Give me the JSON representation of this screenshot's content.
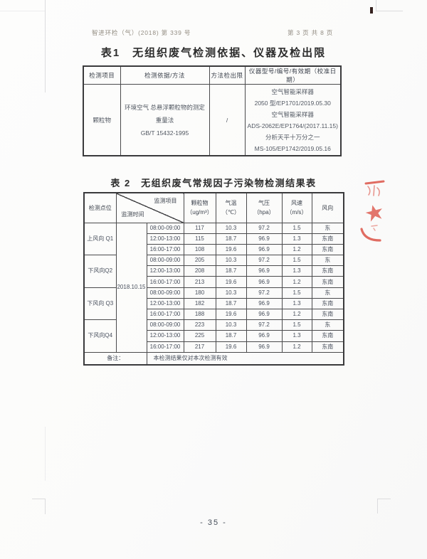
{
  "page": {
    "doc_number": "智进环检（气）(2018) 第 339 号",
    "page_indicator": "第 3 页 共 8 页",
    "footer_page_number": "- 35 -"
  },
  "table1": {
    "title": "表1　无组织废气检测依据、仪器及检出限",
    "headers": [
      "检测项目",
      "检测依据/方法",
      "方法检出限",
      "仪器型号/编号/有效期（校准日期）"
    ],
    "row": {
      "item": "颗粒物",
      "method_lines": [
        "环境空气 总悬浮颗粒物的测定",
        "重量法",
        "GB/T 15432-1995"
      ],
      "detection_limit": "/",
      "instrument_lines": [
        "空气智能采样器",
        "2050 型/EP1701/2019.05.30",
        "空气智能采样器",
        "ADS-2062E/EP1764/(2017.11.15)",
        "分析天平十万分之一",
        "MS-105/EP1742/2019.05.16"
      ]
    }
  },
  "table2": {
    "title": "表 2　无组织废气常规因子污染物检测结果表",
    "corner": {
      "top_right": "监测项目",
      "bottom_left": "监测时间"
    },
    "headers": {
      "point": "检测点位",
      "particulate": "颗粒物",
      "particulate_unit": "（ug/m³）",
      "temperature": "气温",
      "temperature_unit": "（℃）",
      "pressure": "气压",
      "pressure_unit": "（hpa）",
      "wind_speed": "风速",
      "wind_speed_unit": "（m/s）",
      "wind_direction": "风向"
    },
    "date": "2018.10.15",
    "groups": [
      {
        "point": "上风向 Q1",
        "rows": [
          [
            "08:00-09:00",
            "117",
            "10.3",
            "97.2",
            "1.5",
            "东"
          ],
          [
            "12:00-13:00",
            "115",
            "18.7",
            "96.9",
            "1.3",
            "东南"
          ],
          [
            "16:00-17:00",
            "108",
            "19.6",
            "96.9",
            "1.2",
            "东南"
          ]
        ]
      },
      {
        "point": "下风向Q2",
        "rows": [
          [
            "08:00-09:00",
            "205",
            "10.3",
            "97.2",
            "1.5",
            "东"
          ],
          [
            "12:00-13:00",
            "208",
            "18.7",
            "96.9",
            "1.3",
            "东南"
          ],
          [
            "16:00-17:00",
            "213",
            "19.6",
            "96.9",
            "1.2",
            "东南"
          ]
        ]
      },
      {
        "point": "下风向 Q3",
        "rows": [
          [
            "08:00-09:00",
            "180",
            "10.3",
            "97.2",
            "1.5",
            "东"
          ],
          [
            "12:00-13:00",
            "182",
            "18.7",
            "96.9",
            "1.3",
            "东南"
          ],
          [
            "16:00-17:00",
            "188",
            "19.6",
            "96.9",
            "1.2",
            "东南"
          ]
        ]
      },
      {
        "point": "下风向Q4",
        "rows": [
          [
            "08:00-09:00",
            "223",
            "10.3",
            "97.2",
            "1.5",
            "东"
          ],
          [
            "12:00-13:00",
            "225",
            "18.7",
            "96.9",
            "1.3",
            "东南"
          ],
          [
            "16:00-17:00",
            "217",
            "19.6",
            "96.9",
            "1.2",
            "东南"
          ]
        ]
      }
    ],
    "remark_label": "备注：",
    "remark_text": "本检测结果仅对本次检测有效"
  },
  "stamp": {
    "name": "red-seal-fragment",
    "color": "#dc5448"
  }
}
